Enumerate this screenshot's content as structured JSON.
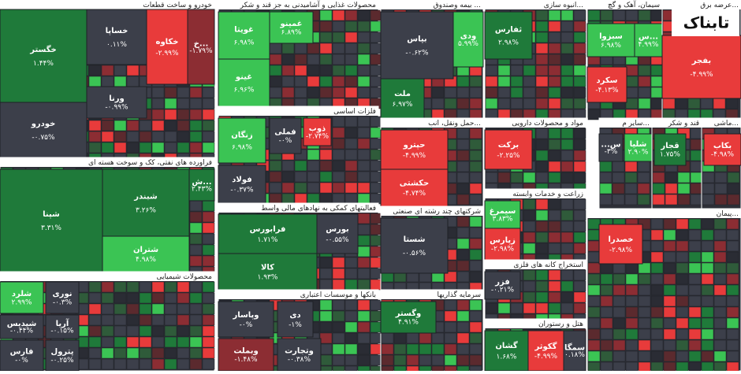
{
  "logo": "تابناک",
  "sectors": [
    {
      "title": "خودرو و ساخت قطعات",
      "tiles": [
        {
          "name": "خگستر",
          "change": "۱.۴۴%"
        },
        {
          "name": "خودرو",
          "change": "-۰.۷۵%"
        },
        {
          "name": "خساپا",
          "change": "۰.۱۱%"
        },
        {
          "name": "ورنا",
          "change": "-۰.۹۹%"
        },
        {
          "name": "خکاوه",
          "change": "-۲.۹۹%"
        },
        {
          "name": "خ...",
          "change": "-۱.۷۹%"
        }
      ]
    },
    {
      "title": "فراورده های نفتی، کک و سوخت هسته ای",
      "tiles": [
        {
          "name": "شپنا",
          "change": "۳.۳۱%"
        },
        {
          "name": "شبندر",
          "change": "۳.۲۶%"
        },
        {
          "name": "شتران",
          "change": "۴.۹۸%"
        },
        {
          "name": "ش...",
          "change": "۲.۴۳%"
        }
      ]
    },
    {
      "title": "محصولات شیمیایی",
      "tiles": [
        {
          "name": "شلرد",
          "change": "۲.۹۹%"
        },
        {
          "name": "نوری",
          "change": "-۰.۳%"
        },
        {
          "name": "شپدیس",
          "change": "-۰.۴۴%"
        },
        {
          "name": "آریا",
          "change": "-۰.۱۵%"
        },
        {
          "name": "فارس",
          "change": "-۰%"
        },
        {
          "name": "پترول",
          "change": "-۰.۲۵%"
        }
      ]
    },
    {
      "title": "محصولات غذایی و آشامیدنی به جز قند و شکر",
      "tiles": [
        {
          "name": "غویتا",
          "change": "۶.۹۸%"
        },
        {
          "name": "غینو",
          "change": "۶.۹۶%"
        },
        {
          "name": "غمینو",
          "change": "۶.۸۹%"
        }
      ]
    },
    {
      "title": "فلزات اساسی",
      "tiles": [
        {
          "name": "زنگان",
          "change": "۶.۹۸%"
        },
        {
          "name": "فولاد",
          "change": "-۰.۳۷%"
        },
        {
          "name": "فملی",
          "change": "-۰%"
        },
        {
          "name": "ذوب",
          "change": "-۲.۷۴%"
        }
      ]
    },
    {
      "title": "فعالیتهای کمکی به نهادهای مالی واسط",
      "tiles": [
        {
          "name": "فرابورس",
          "change": "۱.۷۱%"
        },
        {
          "name": "کالا",
          "change": "۱.۹۳%"
        },
        {
          "name": "بورس",
          "change": "-۰.۵۵%"
        }
      ]
    },
    {
      "title": "بانکها و موسسات اعتباری",
      "tiles": [
        {
          "name": "وپاسار",
          "change": "-۰%"
        },
        {
          "name": "وبملت",
          "change": "-۱.۴۸%"
        },
        {
          "name": "دی",
          "change": "-۱%"
        },
        {
          "name": "وتجارت",
          "change": "-۰.۳۸%"
        }
      ]
    },
    {
      "title": "بیمه وصندوق ...",
      "tiles": [
        {
          "name": "بپاس",
          "change": "-۰.۶۲%"
        },
        {
          "name": "ملت",
          "change": "۶.۹۷%"
        },
        {
          "name": "ودی",
          "change": "۵.۹۹%"
        }
      ]
    },
    {
      "title": "حمل ونقل، انب...",
      "tiles": [
        {
          "name": "حپترو",
          "change": "-۴.۹۹%"
        },
        {
          "name": "حکشتی",
          "change": "-۴.۷۴%"
        }
      ]
    },
    {
      "title": "شرکتهای چند رشته ای صنعتی",
      "tiles": [
        {
          "name": "شستا",
          "change": "-۰.۵۶%"
        }
      ]
    },
    {
      "title": "سرمایه گذاریها",
      "tiles": [
        {
          "name": "وگستر",
          "change": "۴.۹۱%"
        }
      ]
    },
    {
      "title": "انبوه سازی...",
      "tiles": [
        {
          "name": "ثفارس",
          "change": "۲.۹۸%"
        }
      ]
    },
    {
      "title": "مواد و محصولات دارویی",
      "tiles": [
        {
          "name": "برکت",
          "change": "-۲.۲۵%"
        }
      ]
    },
    {
      "title": "زراعت و خدمات وابسته",
      "tiles": [
        {
          "name": "سیمرغ",
          "change": "۳.۸۳%"
        },
        {
          "name": "زپارس",
          "change": "-۲.۹۸%"
        }
      ]
    },
    {
      "title": "استخراج کانه های فلزی",
      "tiles": [
        {
          "name": "فزر",
          "change": "-۰.۲۱%"
        }
      ]
    },
    {
      "title": "هتل و رستوران",
      "tiles": [
        {
          "name": "گشان",
          "change": "۱.۶۸%"
        },
        {
          "name": "گکوثر",
          "change": "-۴.۹۹%"
        },
        {
          "name": "سمگا",
          "change": "۰.۱۸%"
        }
      ]
    },
    {
      "title": "سیمان، آهک و گچ",
      "tiles": [
        {
          "name": "سبزوا",
          "change": "۶.۹۸%"
        },
        {
          "name": "س...",
          "change": "۴.۹۹%"
        },
        {
          "name": "سکرد",
          "change": "-۴.۱۳%"
        }
      ]
    },
    {
      "title": "عرضه برق...",
      "tiles": [
        {
          "name": "بفجر",
          "change": "-۴.۹۹%"
        }
      ]
    },
    {
      "title": "سایر م...",
      "tiles": [
        {
          "name": "...س",
          "change": "-۳%"
        },
        {
          "name": "شلیا",
          "change": "۲.۹۰%"
        }
      ]
    },
    {
      "title": "قند و شکر",
      "tiles": [
        {
          "name": "قجار",
          "change": "۱.۷۵%"
        }
      ]
    },
    {
      "title": "ماشی...",
      "tiles": [
        {
          "name": "بکاب",
          "change": "-۴.۹۸%"
        }
      ]
    },
    {
      "title": "پیمان...",
      "tiles": [
        {
          "name": "خصدرا",
          "change": "-۲.۹۸%"
        }
      ]
    }
  ]
}
